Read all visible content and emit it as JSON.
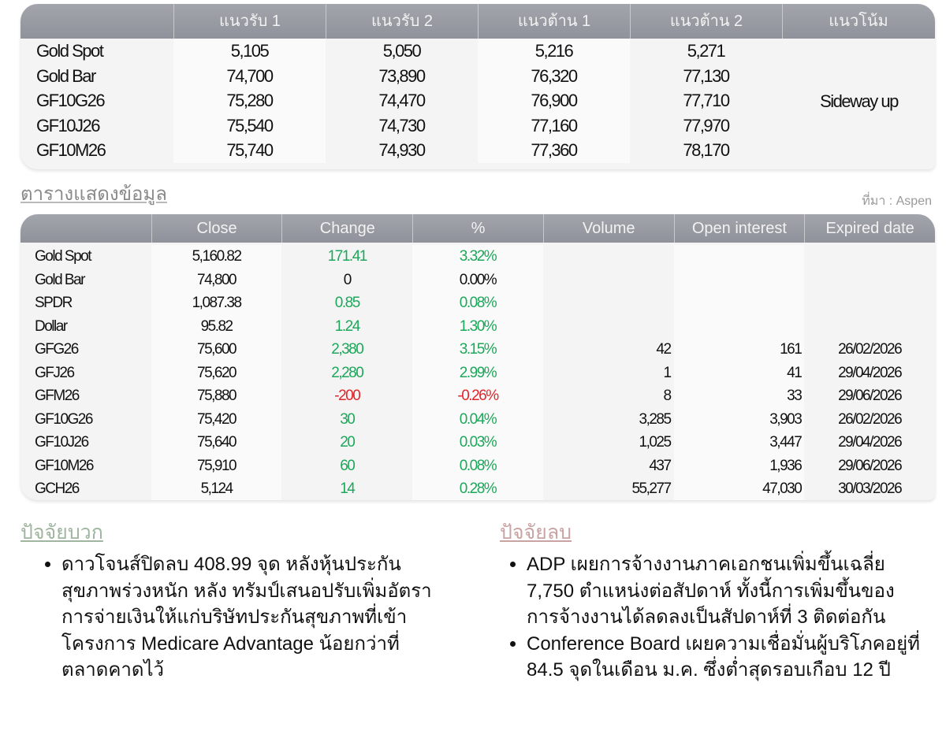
{
  "levels_table": {
    "headers": [
      "",
      "แนวรับ 1",
      "แนวรับ 2",
      "แนวต้าน 1",
      "แนวต้าน 2",
      "แนวโน้ม"
    ],
    "rows": [
      {
        "name": "Gold Spot",
        "s1": "5,105",
        "s2": "5,050",
        "r1": "5,216",
        "r2": "5,271"
      },
      {
        "name": "Gold Bar",
        "s1": "74,700",
        "s2": "73,890",
        "r1": "76,320",
        "r2": "77,130"
      },
      {
        "name": "GF10G26",
        "s1": "75,280",
        "s2": "74,470",
        "r1": "76,900",
        "r2": "77,710"
      },
      {
        "name": "GF10J26",
        "s1": "75,540",
        "s2": "74,730",
        "r1": "77,160",
        "r2": "77,970"
      },
      {
        "name": "GF10M26",
        "s1": "75,740",
        "s2": "74,930",
        "r1": "77,360",
        "r2": "78,170"
      }
    ],
    "trend": "Sideway up"
  },
  "data_title": "ตารางแสดงข้อมูล",
  "source": "ที่มา : Aspen",
  "data_table": {
    "headers": [
      "",
      "Close",
      "Change",
      "%",
      "Volume",
      "Open interest",
      "Expired date"
    ],
    "rows": [
      {
        "name": "Gold Spot",
        "close": "5,160.82",
        "change": "171.41",
        "pct": "3.32%",
        "dir": "up",
        "volume": "",
        "oi": "",
        "expiry": ""
      },
      {
        "name": "Gold Bar",
        "close": "74,800",
        "change": "0",
        "pct": "0.00%",
        "dir": "flat",
        "volume": "",
        "oi": "",
        "expiry": ""
      },
      {
        "name": "SPDR",
        "close": "1,087.38",
        "change": "0.85",
        "pct": "0.08%",
        "dir": "up",
        "volume": "",
        "oi": "",
        "expiry": ""
      },
      {
        "name": "Dollar",
        "close": "95.82",
        "change": "1.24",
        "pct": "1.30%",
        "dir": "up",
        "volume": "",
        "oi": "",
        "expiry": ""
      },
      {
        "name": "GFG26",
        "close": "75,600",
        "change": "2,380",
        "pct": "3.15%",
        "dir": "up",
        "volume": "42",
        "oi": "161",
        "expiry": "26/02/2026"
      },
      {
        "name": "GFJ26",
        "close": "75,620",
        "change": "2,280",
        "pct": "2.99%",
        "dir": "up",
        "volume": "1",
        "oi": "41",
        "expiry": "29/04/2026"
      },
      {
        "name": "GFM26",
        "close": "75,880",
        "change": "-200",
        "pct": "-0.26%",
        "dir": "down",
        "volume": "8",
        "oi": "33",
        "expiry": "29/06/2026"
      },
      {
        "name": "GF10G26",
        "close": "75,420",
        "change": "30",
        "pct": "0.04%",
        "dir": "up",
        "volume": "3,285",
        "oi": "3,903",
        "expiry": "26/02/2026"
      },
      {
        "name": "GF10J26",
        "close": "75,640",
        "change": "20",
        "pct": "0.03%",
        "dir": "up",
        "volume": "1,025",
        "oi": "3,447",
        "expiry": "29/04/2026"
      },
      {
        "name": "GF10M26",
        "close": "75,910",
        "change": "60",
        "pct": "0.08%",
        "dir": "up",
        "volume": "437",
        "oi": "1,936",
        "expiry": "29/06/2026"
      },
      {
        "name": "GCH26",
        "close": "5,124",
        "change": "14",
        "pct": "0.28%",
        "dir": "up",
        "volume": "55,277",
        "oi": "47,030",
        "expiry": "30/03/2026"
      }
    ]
  },
  "colors": {
    "up": "#1da75a",
    "down": "#e0262a",
    "header": "#9a9ca4"
  },
  "positive": {
    "title": "ปัจจัยบวก",
    "items": [
      "ดาวโจนส์ปิดลบ 408.99 จุด หลังหุ้นประกันสุขภาพร่วงหนัก หลัง ทรัมป์เสนอปรับเพิ่มอัตราการจ่ายเงินให้แก่บริษัทประกันสุขภาพที่เข้าโครงการ Medicare Advantage น้อยกว่าที่ตลาดคาดไว้"
    ]
  },
  "negative": {
    "title": "ปัจจัยลบ",
    "items": [
      "ADP เผยการจ้างงานภาคเอกชนเพิ่มขึ้นเฉลี่ย 7,750 ตำแหน่งต่อสัปดาห์ ทั้งนี้การเพิ่มขึ้นของการจ้างงานได้ลดลงเป็นสัปดาห์ที่ 3 ติดต่อกัน",
      "Conference Board เผยความเชื่อมั่นผู้บริโภคอยู่ที่ 84.5 จุดในเดือน ม.ค. ซึ่งต่ำสุดรอบเกือบ 12 ปี"
    ]
  }
}
